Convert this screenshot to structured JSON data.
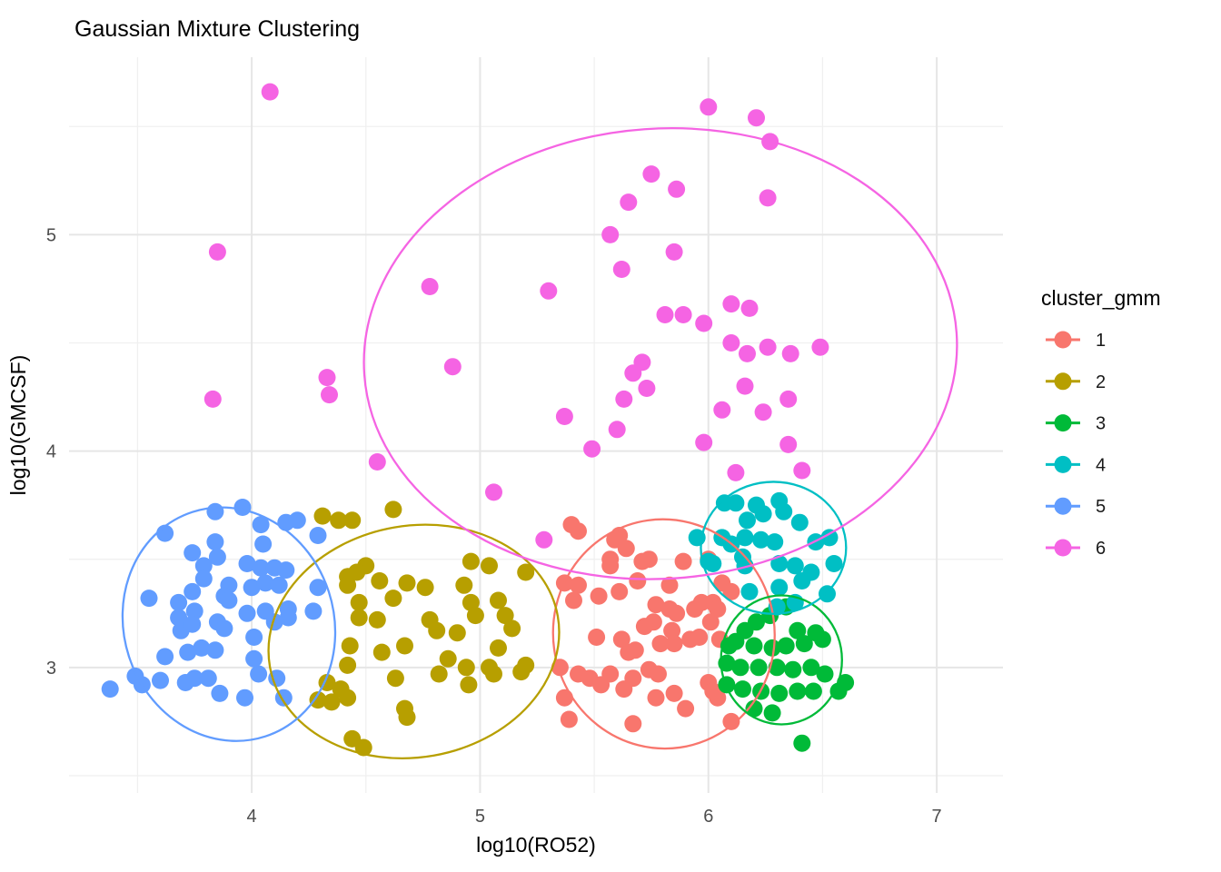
{
  "chart_data": {
    "type": "scatter",
    "title": "Gaussian Mixture Clustering",
    "xlabel": "log10(RO52)",
    "ylabel": "log10(GMCSF)",
    "xlim": [
      3.2,
      7.29
    ],
    "ylim": [
      2.42,
      5.82
    ],
    "x_ticks": [
      4,
      5,
      6,
      7
    ],
    "x_minor_ticks": [
      3.5,
      4.5,
      5.5,
      6.5
    ],
    "y_ticks": [
      3,
      4,
      5
    ],
    "y_minor_ticks": [
      2.5,
      3.5,
      4.5,
      5.5
    ],
    "grid": true,
    "background": "#ffffff",
    "major_grid_color": "#e6e6e6",
    "minor_grid_color": "#f0f0f0",
    "point_radius": 9.5,
    "ellipse_stroke_width": 2.3,
    "legend": {
      "title": "cluster_gmm",
      "position": "right"
    },
    "series": [
      {
        "name": "1",
        "color": "#F8766D",
        "ellipse": {
          "cx": 5.805,
          "cy": 3.155,
          "rx": 0.485,
          "ry": 0.53,
          "angle": -8
        },
        "points": [
          [
            5.43,
            3.63
          ],
          [
            5.4,
            3.66
          ],
          [
            5.61,
            3.61
          ],
          [
            5.64,
            3.55
          ],
          [
            5.59,
            3.59
          ],
          [
            5.71,
            3.49
          ],
          [
            5.74,
            3.5
          ],
          [
            5.57,
            3.5
          ],
          [
            5.57,
            3.47
          ],
          [
            5.89,
            3.49
          ],
          [
            6.0,
            3.5
          ],
          [
            5.37,
            3.39
          ],
          [
            5.43,
            3.38
          ],
          [
            5.41,
            3.31
          ],
          [
            5.52,
            3.33
          ],
          [
            5.61,
            3.35
          ],
          [
            5.69,
            3.4
          ],
          [
            5.83,
            3.38
          ],
          [
            5.77,
            3.29
          ],
          [
            5.83,
            3.27
          ],
          [
            5.86,
            3.25
          ],
          [
            5.94,
            3.27
          ],
          [
            5.97,
            3.3
          ],
          [
            6.02,
            3.3
          ],
          [
            6.06,
            3.39
          ],
          [
            6.1,
            3.35
          ],
          [
            5.76,
            3.21
          ],
          [
            5.84,
            3.17
          ],
          [
            5.72,
            3.19
          ],
          [
            5.51,
            3.14
          ],
          [
            5.62,
            3.13
          ],
          [
            5.65,
            3.07
          ],
          [
            5.68,
            3.08
          ],
          [
            5.79,
            3.11
          ],
          [
            5.85,
            3.11
          ],
          [
            5.92,
            3.13
          ],
          [
            5.96,
            3.14
          ],
          [
            5.35,
            3.0
          ],
          [
            5.43,
            2.97
          ],
          [
            5.48,
            2.95
          ],
          [
            5.53,
            2.92
          ],
          [
            5.57,
            2.97
          ],
          [
            5.63,
            2.9
          ],
          [
            5.67,
            2.95
          ],
          [
            5.74,
            2.99
          ],
          [
            5.78,
            2.97
          ],
          [
            5.77,
            2.86
          ],
          [
            5.85,
            2.88
          ],
          [
            5.9,
            2.81
          ],
          [
            6.0,
            2.93
          ],
          [
            6.04,
            2.86
          ],
          [
            5.37,
            2.86
          ],
          [
            5.39,
            2.76
          ],
          [
            5.67,
            2.74
          ],
          [
            6.1,
            2.75
          ],
          [
            6.04,
            3.27
          ],
          [
            6.01,
            3.21
          ],
          [
            6.05,
            3.13
          ],
          [
            6.02,
            2.89
          ]
        ]
      },
      {
        "name": "2",
        "color": "#B79F00",
        "ellipse": {
          "cx": 4.71,
          "cy": 3.12,
          "rx": 0.64,
          "ry": 0.535,
          "angle": -10
        },
        "points": [
          [
            4.62,
            3.73
          ],
          [
            4.38,
            3.68
          ],
          [
            4.44,
            3.68
          ],
          [
            4.31,
            3.7
          ],
          [
            4.5,
            3.47
          ],
          [
            4.56,
            3.4
          ],
          [
            4.42,
            3.42
          ],
          [
            4.47,
            3.3
          ],
          [
            4.55,
            3.22
          ],
          [
            4.62,
            3.32
          ],
          [
            4.68,
            3.39
          ],
          [
            4.76,
            3.37
          ],
          [
            4.67,
            3.1
          ],
          [
            4.57,
            3.07
          ],
          [
            4.63,
            2.95
          ],
          [
            4.33,
            2.93
          ],
          [
            4.39,
            2.9
          ],
          [
            4.29,
            2.85
          ],
          [
            4.35,
            2.84
          ],
          [
            4.42,
            2.86
          ],
          [
            4.44,
            2.67
          ],
          [
            4.49,
            2.63
          ],
          [
            4.67,
            2.81
          ],
          [
            4.68,
            2.77
          ],
          [
            4.78,
            3.22
          ],
          [
            4.81,
            3.17
          ],
          [
            4.86,
            3.04
          ],
          [
            4.82,
            2.97
          ],
          [
            4.9,
            3.16
          ],
          [
            4.94,
            3.0
          ],
          [
            4.95,
            2.92
          ],
          [
            4.96,
            3.49
          ],
          [
            4.93,
            3.38
          ],
          [
            4.96,
            3.3
          ],
          [
            4.98,
            3.24
          ],
          [
            5.04,
            3.47
          ],
          [
            5.08,
            3.31
          ],
          [
            5.11,
            3.24
          ],
          [
            5.14,
            3.18
          ],
          [
            5.08,
            3.09
          ],
          [
            5.04,
            3.0
          ],
          [
            5.06,
            2.97
          ],
          [
            5.2,
            3.44
          ],
          [
            5.2,
            3.01
          ],
          [
            5.18,
            2.98
          ],
          [
            4.46,
            3.44
          ],
          [
            4.42,
            3.38
          ],
          [
            4.47,
            3.23
          ],
          [
            4.43,
            3.1
          ],
          [
            4.42,
            3.01
          ]
        ]
      },
      {
        "name": "3",
        "color": "#00BA38",
        "ellipse": {
          "cx": 6.32,
          "cy": 3.035,
          "rx": 0.265,
          "ry": 0.298,
          "angle": 0
        },
        "points": [
          [
            6.34,
            3.28
          ],
          [
            6.27,
            3.24
          ],
          [
            6.21,
            3.21
          ],
          [
            6.16,
            3.17
          ],
          [
            6.39,
            3.17
          ],
          [
            6.47,
            3.16
          ],
          [
            6.12,
            3.12
          ],
          [
            6.09,
            3.1
          ],
          [
            6.2,
            3.1
          ],
          [
            6.28,
            3.09
          ],
          [
            6.34,
            3.1
          ],
          [
            6.42,
            3.11
          ],
          [
            6.5,
            3.13
          ],
          [
            6.08,
            3.02
          ],
          [
            6.14,
            3.0
          ],
          [
            6.22,
            3.0
          ],
          [
            6.3,
            3.0
          ],
          [
            6.37,
            2.99
          ],
          [
            6.45,
            3.0
          ],
          [
            6.51,
            2.97
          ],
          [
            6.6,
            2.93
          ],
          [
            6.08,
            2.92
          ],
          [
            6.15,
            2.9
          ],
          [
            6.23,
            2.89
          ],
          [
            6.31,
            2.88
          ],
          [
            6.39,
            2.89
          ],
          [
            6.46,
            2.89
          ],
          [
            6.57,
            2.89
          ],
          [
            6.2,
            2.81
          ],
          [
            6.28,
            2.79
          ],
          [
            6.41,
            2.65
          ]
        ]
      },
      {
        "name": "4",
        "color": "#00BFC4",
        "ellipse": {
          "cx": 6.285,
          "cy": 3.553,
          "rx": 0.318,
          "ry": 0.305,
          "angle": 0
        },
        "points": [
          [
            6.12,
            3.76
          ],
          [
            6.07,
            3.76
          ],
          [
            6.21,
            3.75
          ],
          [
            6.31,
            3.77
          ],
          [
            6.17,
            3.68
          ],
          [
            6.24,
            3.71
          ],
          [
            6.33,
            3.72
          ],
          [
            6.4,
            3.67
          ],
          [
            6.06,
            3.6
          ],
          [
            6.16,
            3.6
          ],
          [
            6.23,
            3.59
          ],
          [
            6.29,
            3.58
          ],
          [
            6.47,
            3.58
          ],
          [
            6.53,
            3.6
          ],
          [
            6.02,
            3.48
          ],
          [
            6.16,
            3.47
          ],
          [
            6.31,
            3.48
          ],
          [
            6.38,
            3.47
          ],
          [
            6.45,
            3.44
          ],
          [
            6.55,
            3.48
          ],
          [
            6.18,
            3.35
          ],
          [
            6.31,
            3.37
          ],
          [
            6.41,
            3.4
          ],
          [
            6.52,
            3.34
          ],
          [
            6.38,
            3.3
          ],
          [
            6.3,
            3.28
          ],
          [
            5.95,
            3.6
          ],
          [
            6.15,
            3.51
          ],
          [
            6.0,
            3.49
          ],
          [
            6.1,
            3.57
          ]
        ]
      },
      {
        "name": "5",
        "color": "#619CFF",
        "ellipse": {
          "cx": 3.9,
          "cy": 3.2,
          "rx": 0.46,
          "ry": 0.545,
          "angle": -18
        },
        "points": [
          [
            3.84,
            3.72
          ],
          [
            3.96,
            3.74
          ],
          [
            4.04,
            3.66
          ],
          [
            3.62,
            3.62
          ],
          [
            4.15,
            3.67
          ],
          [
            4.2,
            3.68
          ],
          [
            4.05,
            3.57
          ],
          [
            3.74,
            3.53
          ],
          [
            3.84,
            3.58
          ],
          [
            3.85,
            3.51
          ],
          [
            3.79,
            3.47
          ],
          [
            3.98,
            3.48
          ],
          [
            4.04,
            3.46
          ],
          [
            4.1,
            3.46
          ],
          [
            4.15,
            3.45
          ],
          [
            3.79,
            3.41
          ],
          [
            3.9,
            3.38
          ],
          [
            4.0,
            3.37
          ],
          [
            4.06,
            3.39
          ],
          [
            4.12,
            3.38
          ],
          [
            3.55,
            3.32
          ],
          [
            3.68,
            3.3
          ],
          [
            3.74,
            3.35
          ],
          [
            3.75,
            3.26
          ],
          [
            3.88,
            3.33
          ],
          [
            3.9,
            3.31
          ],
          [
            3.98,
            3.25
          ],
          [
            4.06,
            3.26
          ],
          [
            4.16,
            3.27
          ],
          [
            4.27,
            3.26
          ],
          [
            4.29,
            3.37
          ],
          [
            4.29,
            3.61
          ],
          [
            3.68,
            3.23
          ],
          [
            3.69,
            3.17
          ],
          [
            3.74,
            3.2
          ],
          [
            3.85,
            3.21
          ],
          [
            3.88,
            3.18
          ],
          [
            4.01,
            3.14
          ],
          [
            4.1,
            3.21
          ],
          [
            4.16,
            3.23
          ],
          [
            3.62,
            3.05
          ],
          [
            3.72,
            3.07
          ],
          [
            3.78,
            3.09
          ],
          [
            3.84,
            3.08
          ],
          [
            3.49,
            2.96
          ],
          [
            3.38,
            2.9
          ],
          [
            3.52,
            2.92
          ],
          [
            3.6,
            2.94
          ],
          [
            3.71,
            2.93
          ],
          [
            3.75,
            2.95
          ],
          [
            3.81,
            2.95
          ],
          [
            3.86,
            2.88
          ],
          [
            3.97,
            2.86
          ],
          [
            4.03,
            2.97
          ],
          [
            4.11,
            2.95
          ],
          [
            4.14,
            2.86
          ],
          [
            4.01,
            3.04
          ]
        ]
      },
      {
        "name": "6",
        "color": "#F564E3",
        "ellipse": {
          "cx": 5.79,
          "cy": 4.45,
          "rx": 1.3,
          "ry": 1.04,
          "angle": -4
        },
        "points": [
          [
            4.08,
            5.66
          ],
          [
            6.0,
            5.59
          ],
          [
            6.21,
            5.54
          ],
          [
            6.27,
            5.43
          ],
          [
            3.85,
            4.92
          ],
          [
            5.75,
            5.28
          ],
          [
            5.86,
            5.21
          ],
          [
            5.65,
            5.15
          ],
          [
            6.26,
            5.17
          ],
          [
            5.57,
            5.0
          ],
          [
            5.62,
            4.84
          ],
          [
            5.85,
            4.92
          ],
          [
            4.78,
            4.76
          ],
          [
            5.3,
            4.74
          ],
          [
            5.81,
            4.63
          ],
          [
            5.89,
            4.63
          ],
          [
            5.98,
            4.59
          ],
          [
            6.1,
            4.68
          ],
          [
            6.18,
            4.66
          ],
          [
            4.88,
            4.39
          ],
          [
            4.33,
            4.34
          ],
          [
            4.34,
            4.26
          ],
          [
            3.83,
            4.24
          ],
          [
            6.1,
            4.5
          ],
          [
            6.17,
            4.45
          ],
          [
            6.26,
            4.48
          ],
          [
            6.36,
            4.45
          ],
          [
            6.49,
            4.48
          ],
          [
            6.16,
            4.3
          ],
          [
            6.06,
            4.19
          ],
          [
            6.24,
            4.18
          ],
          [
            6.35,
            4.24
          ],
          [
            5.67,
            4.36
          ],
          [
            5.71,
            4.41
          ],
          [
            5.73,
            4.29
          ],
          [
            5.63,
            4.24
          ],
          [
            5.37,
            4.16
          ],
          [
            5.49,
            4.01
          ],
          [
            5.6,
            4.1
          ],
          [
            4.55,
            3.95
          ],
          [
            5.06,
            3.81
          ],
          [
            5.28,
            3.59
          ],
          [
            5.98,
            4.04
          ],
          [
            6.35,
            4.03
          ],
          [
            6.41,
            3.91
          ],
          [
            6.12,
            3.9
          ]
        ]
      }
    ]
  }
}
